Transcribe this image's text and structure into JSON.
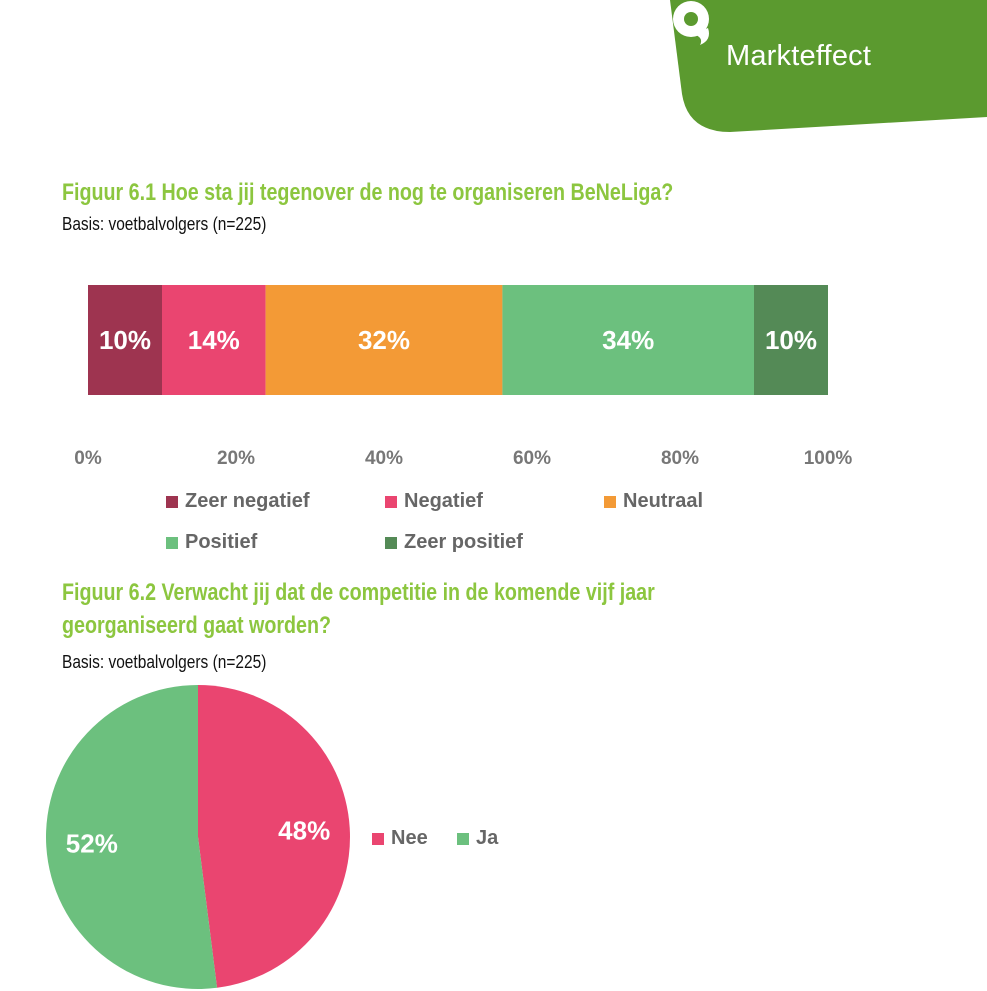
{
  "brand": {
    "name": "Markteffect",
    "logo_icon": "speech-bubble-logo-icon",
    "color": "#5b9a2f"
  },
  "figure1": {
    "title": "Figuur 6.1 Hoe sta jij tegenover de nog te organiseren BeNeLiga?",
    "base": "Basis: voetbalvolgers (n=225)"
  },
  "figure2": {
    "title_line1": "Figuur 6.2 Verwacht jij dat de competitie in de komende vijf jaar",
    "title_line2": "georganiseerd gaat worden?",
    "base": "Basis: voetbalvolgers (n=225)"
  },
  "chart_data": [
    {
      "type": "bar",
      "orientation": "horizontal-stacked-100",
      "series": [
        {
          "name": "Zeer negatief",
          "value": 10,
          "label": "10%",
          "color": "#9e3450"
        },
        {
          "name": "Negatief",
          "value": 14,
          "label": "14%",
          "color": "#ea4570"
        },
        {
          "name": "Neutraal",
          "value": 32,
          "label": "32%",
          "color": "#f39a36"
        },
        {
          "name": "Positief",
          "value": 34,
          "label": "34%",
          "color": "#6cc07e"
        },
        {
          "name": "Zeer positief",
          "value": 10,
          "label": "10%",
          "color": "#548a56"
        }
      ],
      "xlim": [
        0,
        100
      ],
      "xticks": [
        "0%",
        "20%",
        "40%",
        "60%",
        "80%",
        "100%"
      ],
      "grid": false,
      "legend": "bottom"
    },
    {
      "type": "pie",
      "slices": [
        {
          "name": "Nee",
          "value": 48,
          "label": "48%",
          "color": "#ea4570"
        },
        {
          "name": "Ja",
          "value": 52,
          "label": "52%",
          "color": "#6cc07e"
        }
      ],
      "start": "top, clockwise",
      "legend": "right"
    }
  ]
}
